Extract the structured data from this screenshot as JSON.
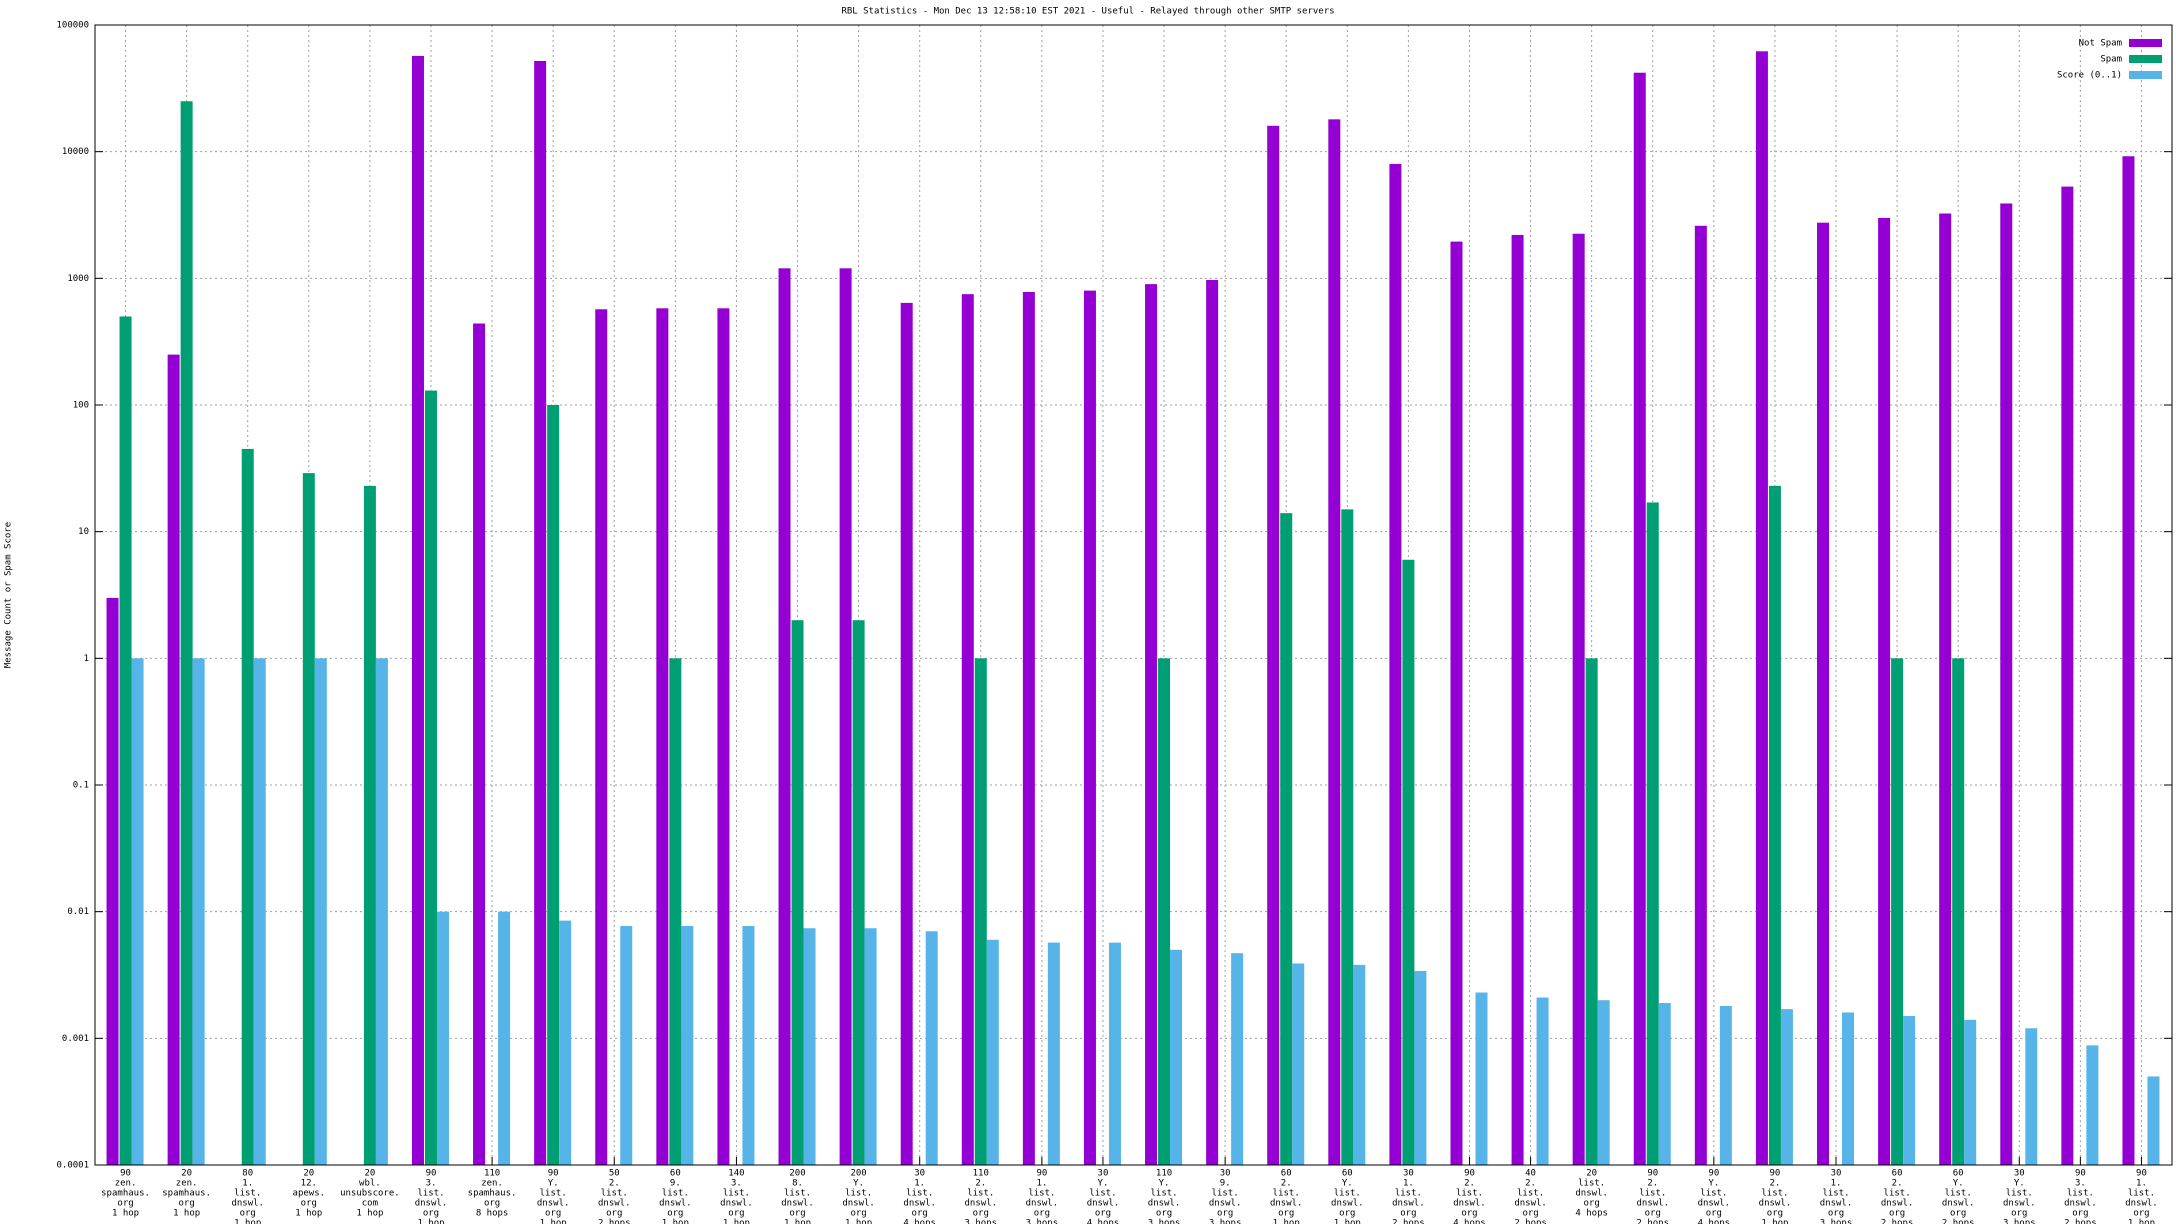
{
  "chart_data": {
    "type": "bar",
    "title": "RBL Statistics - Mon Dec 13 12:58:10 EST 2021 - Useful - Relayed through other SMTP servers",
    "y_label": "Message Count or Spam Score",
    "log_scale": true,
    "grid": true,
    "legend": "top-right",
    "ylim": [
      0.0001,
      100000
    ],
    "yticks": [
      0.0001,
      0.001,
      0.01,
      0.1,
      1,
      10,
      100,
      1000,
      10000,
      100000
    ],
    "categories": [
      [
        "90",
        "zen.",
        "spamhaus.",
        "org",
        "1 hop"
      ],
      [
        "20",
        "zen.",
        "spamhaus.",
        "org",
        "1 hop"
      ],
      [
        "80",
        "1.",
        "list.",
        "dnswl.",
        "org",
        "1 hop"
      ],
      [
        "20",
        "12.",
        "apews.",
        "org",
        "1 hop"
      ],
      [
        "20",
        "wbl.",
        "unsubscore.",
        "com",
        "1 hop"
      ],
      [
        "90",
        "3.",
        "list.",
        "dnswl.",
        "org",
        "1 hop"
      ],
      [
        "110",
        "zen.",
        "spamhaus.",
        "org",
        "8 hops"
      ],
      [
        "90",
        "Y.",
        "list.",
        "dnswl.",
        "org",
        "1 hop"
      ],
      [
        "50",
        "2.",
        "list.",
        "dnswl.",
        "org",
        "2 hops"
      ],
      [
        "60",
        "9.",
        "list.",
        "dnswl.",
        "org",
        "1 hop"
      ],
      [
        "140",
        "3.",
        "list.",
        "dnswl.",
        "org",
        "1 hop"
      ],
      [
        "200",
        "8.",
        "list.",
        "dnswl.",
        "org",
        "1 hop"
      ],
      [
        "200",
        "Y.",
        "list.",
        "dnswl.",
        "org",
        "1 hop"
      ],
      [
        "30",
        "1.",
        "list.",
        "dnswl.",
        "org",
        "4 hops"
      ],
      [
        "110",
        "2.",
        "list.",
        "dnswl.",
        "org",
        "3 hops"
      ],
      [
        "90",
        "1.",
        "list.",
        "dnswl.",
        "org",
        "3 hops"
      ],
      [
        "30",
        "Y.",
        "list.",
        "dnswl.",
        "org",
        "4 hops"
      ],
      [
        "110",
        "Y.",
        "list.",
        "dnswl.",
        "org",
        "3 hops"
      ],
      [
        "30",
        "9.",
        "list.",
        "dnswl.",
        "org",
        "3 hops"
      ],
      [
        "60",
        "2.",
        "list.",
        "dnswl.",
        "org",
        "1 hop"
      ],
      [
        "60",
        "Y.",
        "list.",
        "dnswl.",
        "org",
        "1 hop"
      ],
      [
        "30",
        "1.",
        "list.",
        "dnswl.",
        "org",
        "2 hops"
      ],
      [
        "90",
        "2.",
        "list.",
        "dnswl.",
        "org",
        "4 hops"
      ],
      [
        "40",
        "2.",
        "list.",
        "dnswl.",
        "org",
        "2 hops"
      ],
      [
        "20",
        "list.",
        "dnswl.",
        "org",
        "4 hops"
      ],
      [
        "90",
        "2.",
        "list.",
        "dnswl.",
        "org",
        "2 hops"
      ],
      [
        "90",
        "Y.",
        "list.",
        "dnswl.",
        "org",
        "4 hops"
      ],
      [
        "90",
        "2.",
        "list.",
        "dnswl.",
        "org",
        "1 hop"
      ],
      [
        "30",
        "1.",
        "list.",
        "dnswl.",
        "org",
        "3 hops"
      ],
      [
        "60",
        "2.",
        "list.",
        "dnswl.",
        "org",
        "2 hops"
      ],
      [
        "60",
        "Y.",
        "list.",
        "dnswl.",
        "org",
        "2 hops"
      ],
      [
        "30",
        "Y.",
        "list.",
        "dnswl.",
        "org",
        "3 hops"
      ],
      [
        "90",
        "3.",
        "list.",
        "dnswl.",
        "org",
        "2 hops"
      ],
      [
        "90",
        "1.",
        "list.",
        "dnswl.",
        "org",
        "1 hop"
      ]
    ],
    "series": [
      {
        "name": "Not Spam",
        "color": "#9400d3",
        "values": [
          3,
          250,
          null,
          null,
          null,
          57000,
          440,
          52000,
          570,
          580,
          580,
          1200,
          1200,
          640,
          750,
          780,
          800,
          900,
          970,
          16000,
          18000,
          8000,
          1950,
          2200,
          2250,
          42000,
          2600,
          62000,
          2750,
          3000,
          3250,
          3900,
          5300,
          9200
        ]
      },
      {
        "name": "Spam",
        "color": "#009e73",
        "values": [
          500,
          25000,
          45,
          29,
          23,
          130,
          null,
          100,
          null,
          1,
          null,
          2,
          2,
          null,
          1,
          null,
          null,
          1,
          null,
          14,
          15,
          6,
          null,
          null,
          1,
          17,
          null,
          23,
          null,
          1,
          1,
          null,
          null,
          null
        ]
      },
      {
        "name": "Score (0..1)",
        "color": "#56b4e9",
        "values": [
          1,
          1,
          1,
          1,
          1,
          0.01,
          0.01,
          0.0085,
          0.0077,
          0.0077,
          0.0077,
          0.0074,
          0.0074,
          0.007,
          0.006,
          0.0057,
          0.0057,
          0.005,
          0.0047,
          0.0039,
          0.0038,
          0.0034,
          0.0023,
          0.0021,
          0.002,
          0.0019,
          0.0018,
          0.0017,
          0.0016,
          0.0015,
          0.0014,
          0.0012,
          0.00088,
          0.0005
        ]
      }
    ]
  }
}
